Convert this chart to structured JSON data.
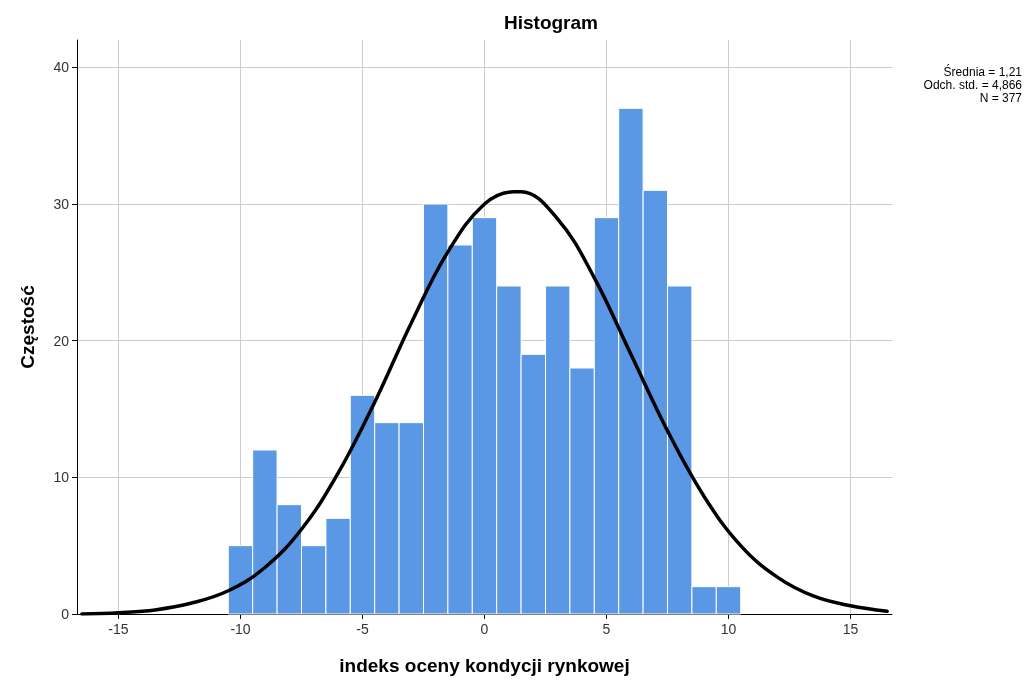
{
  "chart_data": {
    "type": "histogram",
    "title": "Histogram",
    "xlabel": "indeks oceny kondycji rynkowej",
    "ylabel": "Częstość",
    "bins": [
      -10.5,
      -9.5,
      -8.5,
      -7.5,
      -6.5,
      -5.5,
      -4.5,
      -3.5,
      -2.5,
      -1.5,
      -0.5,
      0.5,
      1.5,
      2.5,
      3.5,
      4.5,
      5.5,
      6.5,
      7.5,
      8.5,
      9.5,
      10.5
    ],
    "values": [
      5,
      12,
      8,
      5,
      7,
      16,
      14,
      14,
      30,
      27,
      29,
      24,
      19,
      24,
      18,
      29,
      37,
      31,
      24,
      2,
      2
    ],
    "color": "#5a97e4",
    "series": [
      {
        "type": "line",
        "color": "#000000",
        "x": [
          -16.5,
          -15,
          -13.5,
          -12,
          -10.5,
          -9,
          -7.5,
          -6,
          -4.5,
          -3,
          -1.5,
          0,
          1.21,
          1.5,
          3,
          4.5,
          6,
          7.5,
          9,
          10.5,
          12,
          13.5,
          15,
          16.5
        ],
        "values": [
          0.0,
          0.1,
          0.3,
          0.8,
          1.7,
          3.4,
          6.2,
          10.3,
          15.5,
          21.3,
          26.5,
          30.0,
          30.9,
          30.9,
          28.9,
          24.6,
          19.0,
          13.4,
          8.6,
          5.0,
          2.7,
          1.3,
          0.6,
          0.2
        ]
      }
    ],
    "xlim": [
      -16.7,
      16.7
    ],
    "xticks": [
      -15,
      -10,
      -5,
      0,
      5,
      10,
      15
    ],
    "ylim": [
      0,
      42
    ],
    "yticks": [
      0,
      10,
      20,
      30,
      40
    ],
    "grid": true,
    "marker": "none",
    "line_style": "solid",
    "annotations": [
      "Średnia = 1,21",
      "Odch. std. = 4,866",
      "N = 377"
    ]
  }
}
